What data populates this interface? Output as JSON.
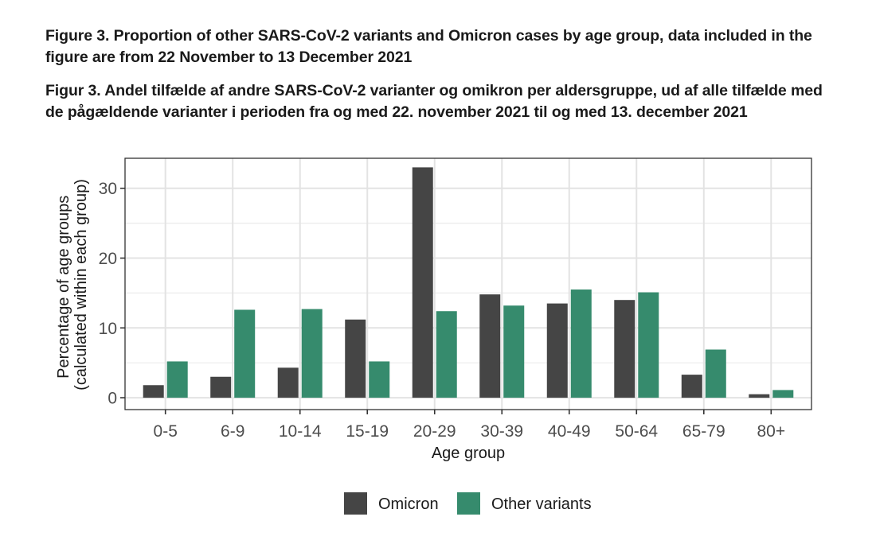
{
  "captions": {
    "english": "Figure 3. Proportion of other SARS-CoV-2 variants and Omicron cases by age group, data included in the figure are from 22 November to 13 December 2021",
    "danish": "Figur 3.  Andel tilfælde af andre SARS-CoV-2 varianter og omikron per aldersgruppe, ud af alle tilfælde med de pågældende varianter i perioden fra og med 22. november 2021 til og med 13. december 2021"
  },
  "chart_data": {
    "type": "bar",
    "title": "",
    "xlabel": "Age group",
    "ylabel": [
      "Percentage of age groups",
      "(calculated within each group)"
    ],
    "categories": [
      "0-5",
      "6-9",
      "10-14",
      "15-19",
      "20-29",
      "30-39",
      "40-49",
      "50-64",
      "65-79",
      "80+"
    ],
    "series": [
      {
        "name": "Omicron",
        "color": "#454545",
        "values": [
          1.8,
          3.0,
          4.3,
          11.2,
          33.0,
          14.8,
          13.5,
          14.0,
          3.3,
          0.5
        ]
      },
      {
        "name": "Other variants",
        "color": "#368b6d",
        "values": [
          5.2,
          12.6,
          12.7,
          5.2,
          12.4,
          13.2,
          15.5,
          15.1,
          6.9,
          1.1
        ]
      }
    ],
    "ylim": [
      -1.7,
      34.3
    ],
    "yticks": [
      0,
      10,
      20,
      30
    ],
    "grid": true,
    "legend": "bottom"
  }
}
